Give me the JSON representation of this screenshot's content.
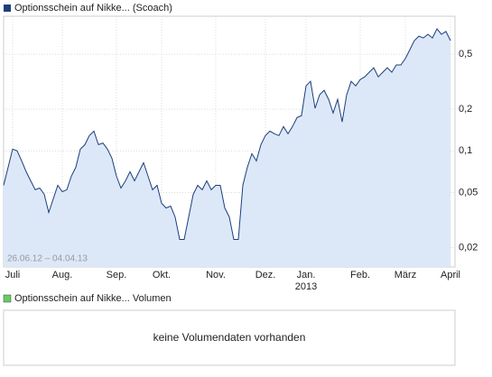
{
  "chart_data": {
    "type": "line",
    "legend": "Optionsschein auf Nikke... (Scoach)",
    "date_range": "26.06.12 – 04.04.13",
    "year_label": "2013",
    "log_scale": true,
    "grid": true,
    "color": "#1c3f7a",
    "fill_color": "#dce8f8",
    "categories": [
      null,
      null,
      "Juli",
      null,
      null,
      null,
      null,
      null,
      null,
      null,
      null,
      null,
      null,
      "Aug.",
      null,
      null,
      null,
      null,
      null,
      null,
      null,
      null,
      null,
      null,
      null,
      "Sep.",
      null,
      null,
      null,
      null,
      null,
      null,
      null,
      null,
      null,
      "Okt.",
      null,
      null,
      null,
      null,
      null,
      null,
      null,
      null,
      null,
      null,
      null,
      "Nov.",
      null,
      null,
      null,
      null,
      null,
      null,
      null,
      null,
      null,
      null,
      "Dez.",
      null,
      null,
      null,
      null,
      null,
      null,
      null,
      null,
      "Jan.",
      null,
      null,
      null,
      null,
      null,
      null,
      null,
      null,
      null,
      null,
      null,
      "Feb.",
      null,
      null,
      null,
      null,
      null,
      null,
      null,
      null,
      null,
      "März",
      null,
      null,
      null,
      null,
      null,
      null,
      null,
      null,
      null,
      "April"
    ],
    "values": [
      0.0564,
      0.0762,
      0.103,
      0.1,
      0.0847,
      0.0707,
      0.0608,
      0.0524,
      0.0539,
      0.0485,
      0.0359,
      0.045,
      0.0564,
      0.0508,
      0.0524,
      0.0656,
      0.0762,
      0.103,
      0.111,
      0.129,
      0.139,
      0.111,
      0.114,
      0.103,
      0.0885,
      0.0656,
      0.0539,
      0.0608,
      0.0707,
      0.0608,
      0.0707,
      0.0822,
      0.0656,
      0.0524,
      0.0564,
      0.0418,
      0.0387,
      0.0399,
      0.0333,
      0.0229,
      0.0229,
      0.0333,
      0.0485,
      0.0564,
      0.0524,
      0.0608,
      0.0524,
      0.0564,
      0.0564,
      0.0387,
      0.0333,
      0.0229,
      0.0229,
      0.0564,
      0.0762,
      0.0955,
      0.0847,
      0.111,
      0.129,
      0.139,
      0.133,
      0.129,
      0.15,
      0.133,
      0.15,
      0.174,
      0.18,
      0.295,
      0.318,
      0.203,
      0.254,
      0.274,
      0.236,
      0.188,
      0.236,
      0.162,
      0.254,
      0.318,
      0.295,
      0.328,
      0.343,
      0.37,
      0.399,
      0.343,
      0.37,
      0.399,
      0.37,
      0.418,
      0.418,
      0.464,
      0.539,
      0.627,
      0.675,
      0.655,
      0.696,
      0.655,
      0.762,
      0.696,
      0.729,
      0.627
    ],
    "ylim": [
      0.0145,
      0.94
    ],
    "yticks": [
      {
        "value": 0.02,
        "label": "0,02"
      },
      {
        "value": 0.05,
        "label": "0,05"
      },
      {
        "value": 0.1,
        "label": "0,1"
      },
      {
        "value": 0.2,
        "label": "0,2"
      },
      {
        "value": 0.5,
        "label": "0,5"
      }
    ]
  },
  "volume_panel": {
    "legend": "Optionsschein auf Nikke... Volumen",
    "color": "#66cc66",
    "message": "keine Volumendaten vorhanden"
  }
}
